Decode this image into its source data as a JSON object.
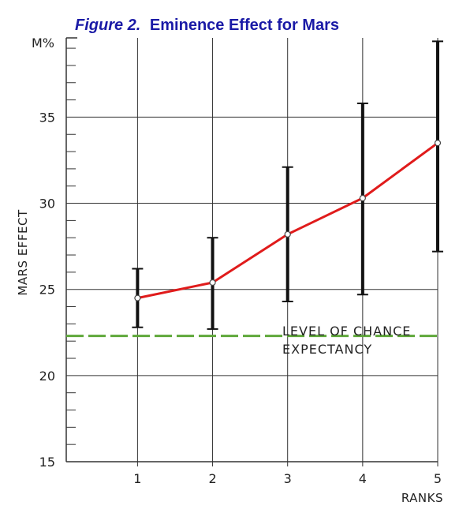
{
  "chart_data": {
    "type": "line",
    "title_prefix": "Figure 2.",
    "title_main": "Eminence Effect for Mars",
    "xlabel": "RANKS",
    "ylabel": "MARS EFFECT",
    "y_unit": "M%",
    "x": [
      1,
      2,
      3,
      4,
      5
    ],
    "x_ticks": [
      "1",
      "2",
      "3",
      "4",
      "5"
    ],
    "ylim": [
      15,
      39.6
    ],
    "y_ticks": [
      "15",
      "20",
      "25",
      "30",
      "35"
    ],
    "series": [
      {
        "values": [
          24.5,
          25.4,
          28.2,
          30.3,
          33.5
        ],
        "error_low": [
          22.8,
          22.7,
          24.3,
          24.7,
          27.2
        ],
        "error_high": [
          26.2,
          28.0,
          32.1,
          35.8,
          39.4
        ]
      }
    ],
    "reference_line": {
      "value": 22.3,
      "label_line1": "LEVEL OF CHANCE",
      "label_line2": "EXPECTANCY"
    },
    "grid": true,
    "colors": {
      "line": "#e01b1b",
      "errorbar": "#111111",
      "reference": "#5fa83a",
      "grid": "#333333",
      "title": "#1a1aa6"
    }
  }
}
